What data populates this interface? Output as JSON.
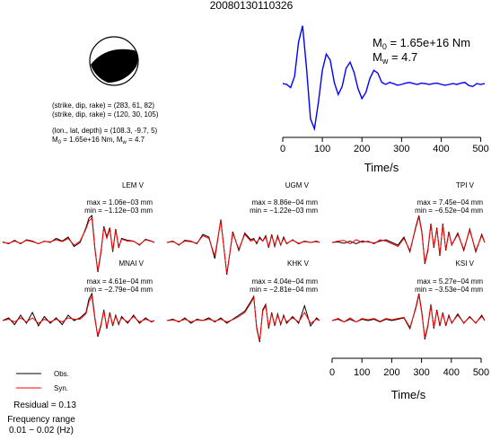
{
  "title": "20080130110326",
  "moment_tensor_text": {
    "line1": "(strike, dip, rake) = (283, 61, 82)",
    "line2": "(strike, dip, rake) = (120, 30, 105)",
    "line3": "(lon., lat, depth) = (108.3, -9.7, 5)",
    "line4_a": "M",
    "line4_sub": "0",
    "line4_b": " = 1.65e+16 Nm, M",
    "line4_sub2": "w",
    "line4_c": " = 4.7"
  },
  "stf_panel": {
    "m0_label": "M",
    "m0_sub": "0",
    "m0_value": " = 1.65e+16 Nm",
    "mw_label": "M",
    "mw_sub": "w",
    "mw_value": " = 4.7",
    "xlabel": "Time/s",
    "color": "#0000ff"
  },
  "wave_axis": {
    "xlabel": "Time/s"
  },
  "legend": {
    "obs_label": "Obs.",
    "syn_label": "Syn.",
    "obs_color": "#000000",
    "syn_color": "#ff0000"
  },
  "residual": "Residual = 0.13",
  "freq_label": "Frequency range",
  "freq_value": "0.01 − 0.02 (Hz)",
  "chart_data": [
    {
      "type": "line",
      "name": "source_time_function",
      "xlabel": "Time/s",
      "ylabel": "",
      "xlim": [
        0,
        510
      ],
      "xticks": [
        0,
        100,
        200,
        300,
        400,
        500
      ],
      "ylim": [
        -1.2,
        1.6
      ],
      "x": [
        0,
        10,
        20,
        30,
        40,
        50,
        60,
        70,
        80,
        90,
        100,
        110,
        120,
        130,
        140,
        150,
        160,
        170,
        180,
        190,
        200,
        210,
        220,
        230,
        240,
        250,
        260,
        270,
        280,
        290,
        300,
        310,
        320,
        330,
        340,
        350,
        360,
        370,
        380,
        390,
        400,
        410,
        420,
        430,
        440,
        450,
        460,
        470,
        480,
        490,
        500,
        510
      ],
      "y": [
        0.02,
        0.0,
        -0.08,
        0.2,
        1.05,
        1.45,
        0.4,
        -0.85,
        -1.1,
        -0.45,
        0.35,
        0.75,
        0.6,
        0.05,
        -0.25,
        -0.05,
        0.4,
        0.55,
        0.3,
        -0.1,
        -0.35,
        -0.2,
        0.15,
        0.35,
        0.28,
        0.05,
        0.0,
        0.05,
        0.02,
        -0.02,
        0.0,
        0.03,
        0.05,
        0.02,
        0.0,
        0.03,
        0.02,
        0.0,
        0.02,
        0.03,
        0.0,
        -0.02,
        0.0,
        0.02,
        0.0,
        0.03,
        0.05,
        -0.03,
        -0.05,
        0.02,
        0.0,
        0.02
      ]
    },
    {
      "type": "line",
      "name": "LEM V",
      "max": "max = 1.06e−03 mm",
      "min": "min = −1.12e−03 mm",
      "xlim": [
        0,
        510
      ],
      "ylim": [
        -1.2,
        1.2
      ],
      "x": [
        0,
        20,
        40,
        60,
        80,
        100,
        120,
        140,
        160,
        180,
        200,
        220,
        240,
        260,
        280,
        290,
        300,
        310,
        320,
        330,
        340,
        350,
        360,
        370,
        380,
        390,
        400,
        420,
        440,
        460,
        480,
        500,
        510
      ],
      "obs": [
        0.02,
        -0.05,
        0.08,
        -0.05,
        0.1,
        0.05,
        -0.05,
        0.05,
        0.0,
        0.15,
        0.05,
        0.2,
        -0.15,
        0.0,
        0.55,
        0.9,
        1.0,
        -0.2,
        -1.1,
        -0.4,
        0.6,
        0.2,
        0.55,
        -0.35,
        0.5,
        -0.2,
        0.15,
        0.08,
        0.05,
        -0.1,
        0.12,
        0.05,
        0.0
      ],
      "syn": [
        0.0,
        -0.03,
        0.05,
        -0.03,
        0.08,
        0.03,
        -0.04,
        0.04,
        0.02,
        0.1,
        0.03,
        0.15,
        -0.1,
        0.05,
        0.5,
        0.8,
        0.9,
        -0.25,
        -1.05,
        -0.35,
        0.55,
        0.15,
        0.5,
        -0.3,
        0.45,
        -0.15,
        0.12,
        0.05,
        0.04,
        -0.08,
        0.1,
        0.04,
        0.0
      ]
    },
    {
      "type": "line",
      "name": "UGM V",
      "max": "max = 8.86e−04 mm",
      "min": "min = −1.22e−03 mm",
      "xlim": [
        0,
        510
      ],
      "ylim": [
        -1.3,
        1.3
      ],
      "x": [
        0,
        20,
        40,
        60,
        80,
        100,
        120,
        140,
        160,
        180,
        200,
        220,
        240,
        260,
        280,
        290,
        300,
        310,
        320,
        330,
        340,
        350,
        360,
        370,
        380,
        390,
        400,
        420,
        440,
        460,
        480,
        500,
        510
      ],
      "obs": [
        0.0,
        0.05,
        -0.1,
        0.08,
        0.05,
        -0.05,
        0.3,
        0.2,
        -0.6,
        0.85,
        -1.2,
        0.4,
        -0.3,
        0.35,
        0.1,
        0.15,
        -0.05,
        0.2,
        0.05,
        0.25,
        -0.2,
        0.3,
        -0.15,
        0.25,
        -0.1,
        0.2,
        -0.05,
        0.1,
        -0.05,
        0.05,
        0.0,
        0.05,
        0.0
      ],
      "syn": [
        0.0,
        0.03,
        -0.08,
        0.05,
        0.03,
        -0.03,
        0.25,
        0.15,
        -0.5,
        0.8,
        -1.15,
        0.35,
        -0.25,
        0.3,
        0.05,
        0.1,
        0.0,
        0.15,
        0.05,
        0.2,
        -0.15,
        0.25,
        -0.1,
        0.2,
        -0.08,
        0.15,
        -0.03,
        0.08,
        -0.03,
        0.03,
        0.0,
        0.03,
        0.0
      ]
    },
    {
      "type": "line",
      "name": "TPI V",
      "max": "max = 7.45e−04 mm",
      "min": "min = −6.52e−04 mm",
      "xlim": [
        0,
        510
      ],
      "ylim": [
        -1.2,
        1.2
      ],
      "x": [
        0,
        20,
        40,
        60,
        80,
        100,
        120,
        140,
        160,
        180,
        200,
        220,
        240,
        260,
        280,
        290,
        300,
        310,
        320,
        330,
        340,
        350,
        360,
        370,
        380,
        390,
        400,
        420,
        440,
        460,
        480,
        500,
        510
      ],
      "obs": [
        0.0,
        0.02,
        -0.03,
        0.05,
        -0.05,
        0.05,
        0.02,
        -0.02,
        0.05,
        0.1,
        0.0,
        -0.1,
        0.2,
        -0.35,
        0.6,
        1.0,
        0.4,
        -0.8,
        -0.3,
        0.7,
        -0.2,
        0.55,
        -0.5,
        0.7,
        -0.3,
        0.4,
        -0.1,
        0.35,
        -0.3,
        0.5,
        -0.35,
        0.3,
        0.0
      ],
      "syn": [
        0.0,
        0.05,
        0.08,
        -0.05,
        0.1,
        0.0,
        0.05,
        -0.05,
        0.1,
        0.05,
        -0.05,
        -0.15,
        0.15,
        -0.3,
        0.55,
        0.95,
        0.35,
        -0.75,
        -0.25,
        0.65,
        -0.15,
        0.5,
        -0.45,
        0.65,
        -0.25,
        0.35,
        -0.08,
        0.3,
        -0.25,
        0.45,
        -0.3,
        0.25,
        0.0
      ]
    },
    {
      "type": "line",
      "name": "MNAI V",
      "max": "max = 4.61e−04 mm",
      "min": "min = −2.79e−04 mm",
      "xlim": [
        0,
        510
      ],
      "ylim": [
        -1.2,
        1.2
      ],
      "x": [
        0,
        20,
        40,
        60,
        80,
        100,
        120,
        140,
        160,
        180,
        200,
        220,
        240,
        260,
        280,
        290,
        300,
        310,
        320,
        330,
        340,
        350,
        360,
        370,
        380,
        390,
        400,
        420,
        440,
        460,
        480,
        500,
        510
      ],
      "obs": [
        0.0,
        0.1,
        -0.15,
        0.2,
        -0.1,
        0.3,
        -0.2,
        0.15,
        -0.1,
        0.1,
        -0.15,
        0.2,
        0.0,
        0.1,
        0.3,
        0.8,
        1.0,
        0.1,
        -0.6,
        -0.2,
        0.4,
        -0.3,
        0.3,
        -0.2,
        0.2,
        -0.15,
        0.15,
        -0.1,
        0.2,
        -0.1,
        0.1,
        -0.05,
        0.0
      ],
      "syn": [
        0.0,
        0.05,
        -0.05,
        0.1,
        -0.05,
        0.1,
        -0.1,
        0.05,
        -0.05,
        0.05,
        -0.05,
        0.1,
        0.05,
        0.05,
        0.25,
        0.7,
        0.9,
        0.05,
        -0.55,
        -0.15,
        0.35,
        -0.25,
        0.25,
        -0.15,
        0.15,
        -0.1,
        0.1,
        -0.05,
        0.15,
        -0.05,
        0.05,
        -0.03,
        0.0
      ]
    },
    {
      "type": "line",
      "name": "KHK V",
      "max": "max = 4.04e−04 mm",
      "min": "min = −2.81e−04 mm",
      "xlim": [
        0,
        510
      ],
      "ylim": [
        -1.2,
        1.2
      ],
      "x": [
        0,
        20,
        40,
        60,
        80,
        100,
        120,
        140,
        160,
        180,
        200,
        220,
        240,
        260,
        280,
        290,
        300,
        310,
        320,
        330,
        340,
        350,
        360,
        370,
        380,
        390,
        400,
        420,
        440,
        460,
        480,
        500,
        510
      ],
      "obs": [
        0.0,
        0.05,
        -0.05,
        0.1,
        -0.1,
        0.05,
        0.0,
        0.1,
        -0.05,
        0.1,
        -0.1,
        0.05,
        0.2,
        0.35,
        0.7,
        0.9,
        -0.3,
        -0.8,
        0.4,
        0.6,
        -0.3,
        0.3,
        -0.2,
        0.25,
        -0.15,
        0.2,
        -0.1,
        0.15,
        -0.1,
        0.55,
        -0.2,
        0.1,
        0.0
      ],
      "syn": [
        0.0,
        0.02,
        -0.03,
        0.05,
        -0.05,
        0.02,
        0.0,
        0.05,
        -0.02,
        0.05,
        -0.05,
        0.03,
        0.15,
        0.3,
        0.65,
        0.85,
        -0.25,
        -0.75,
        0.35,
        0.55,
        -0.25,
        0.25,
        -0.15,
        0.2,
        -0.1,
        0.15,
        -0.05,
        0.1,
        -0.05,
        0.3,
        -0.1,
        0.05,
        0.0
      ]
    },
    {
      "type": "line",
      "name": "KSI V",
      "max": "max = 5.27e−04 mm",
      "min": "min = −3.53e−04 mm",
      "xlim": [
        0,
        510
      ],
      "ylim": [
        -1.2,
        1.2
      ],
      "x": [
        0,
        20,
        40,
        60,
        80,
        100,
        120,
        140,
        160,
        180,
        200,
        220,
        240,
        260,
        280,
        290,
        300,
        310,
        320,
        330,
        340,
        350,
        360,
        370,
        380,
        390,
        400,
        420,
        440,
        460,
        480,
        500,
        510
      ],
      "obs": [
        0.0,
        0.05,
        -0.05,
        0.05,
        -0.05,
        0.05,
        0.0,
        0.05,
        -0.05,
        0.05,
        0.0,
        0.05,
        0.1,
        -0.3,
        0.5,
        1.0,
        0.3,
        -0.7,
        -0.2,
        0.6,
        -0.3,
        0.4,
        -0.2,
        0.3,
        -0.2,
        0.2,
        -0.1,
        0.25,
        -0.1,
        0.15,
        -0.1,
        0.2,
        0.0
      ],
      "syn": [
        0.0,
        0.08,
        -0.05,
        0.1,
        -0.05,
        0.08,
        0.03,
        0.08,
        -0.03,
        0.08,
        0.03,
        0.08,
        0.12,
        -0.25,
        0.45,
        0.95,
        0.25,
        -0.65,
        -0.15,
        0.55,
        -0.25,
        0.35,
        -0.15,
        0.25,
        -0.15,
        0.15,
        -0.08,
        0.2,
        -0.08,
        0.12,
        -0.08,
        0.15,
        0.0
      ]
    }
  ]
}
